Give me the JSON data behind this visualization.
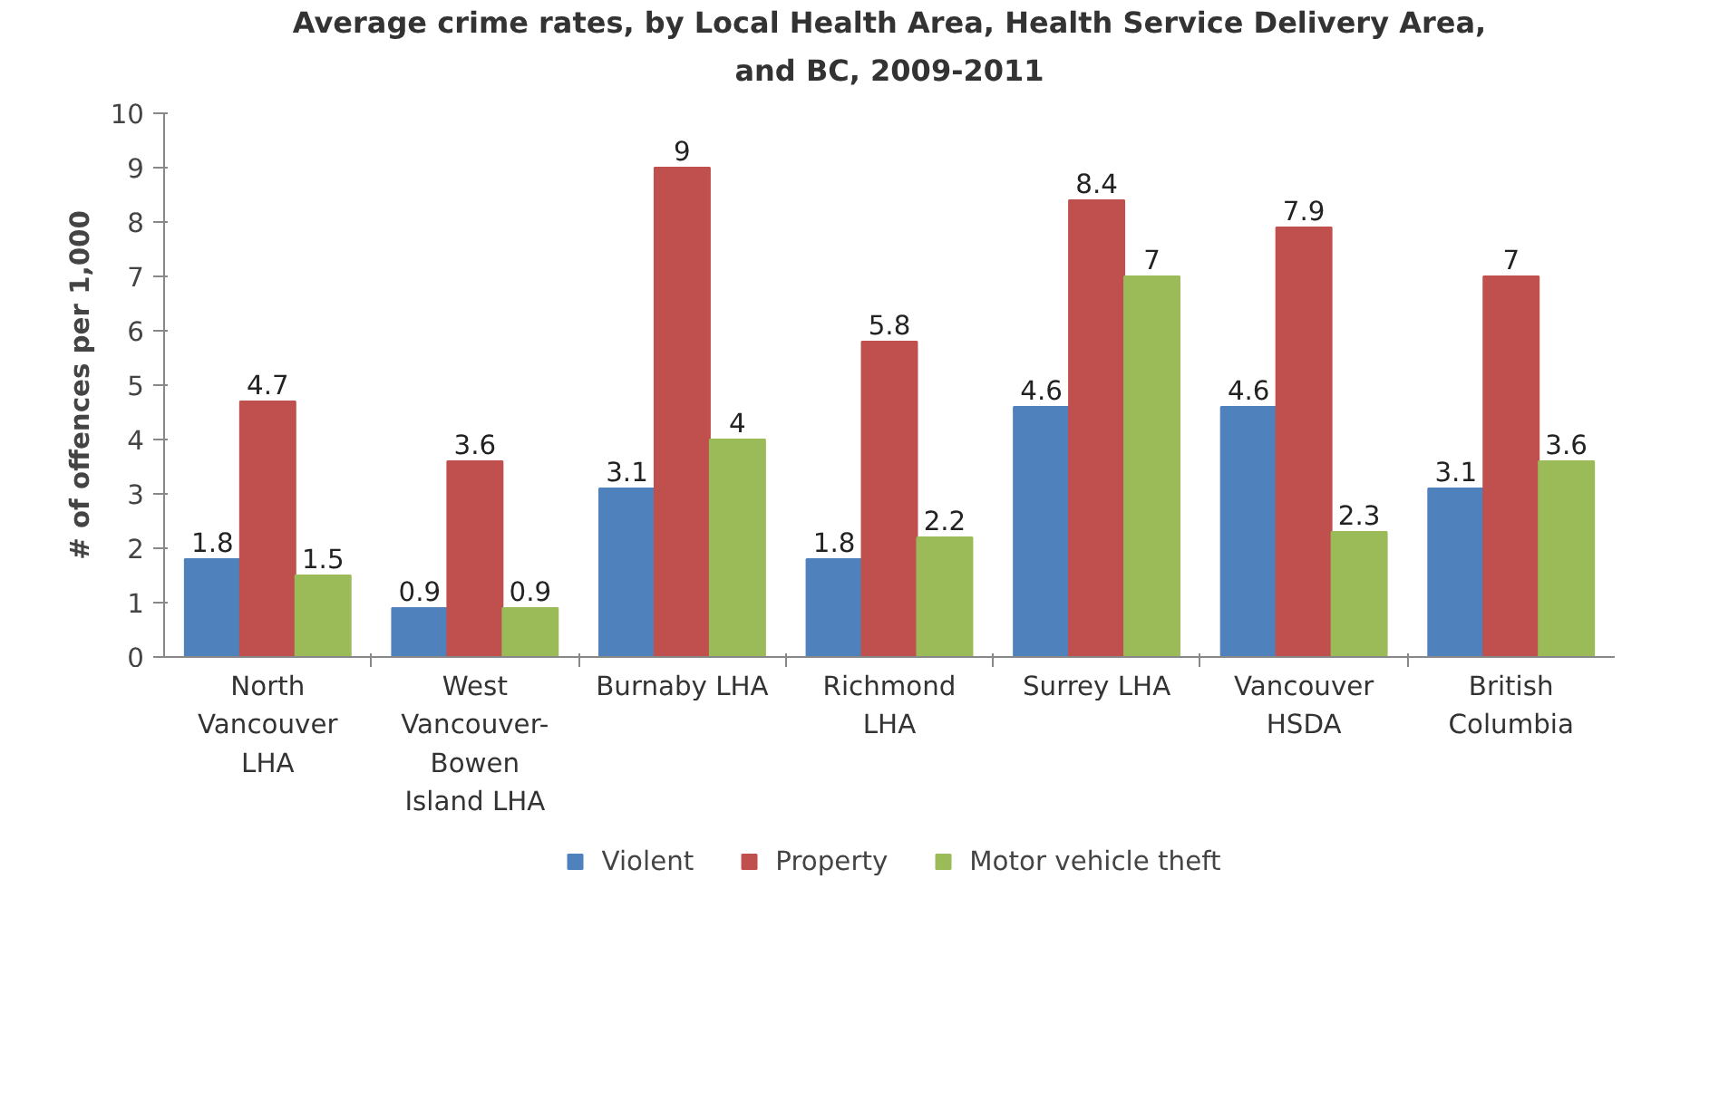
{
  "chart_data": {
    "type": "bar",
    "title": "Average crime rates, by Local Health Area, Health Service Delivery Area,\nand BC, 2009-2011",
    "ylabel": "# of offences per 1,000",
    "categories": [
      "North\nVancouver\nLHA",
      "West\nVancouver-\nBowen\nIsland LHA",
      "Burnaby LHA",
      "Richmond\nLHA",
      "Surrey LHA",
      "Vancouver\nHSDA",
      "British\nColumbia"
    ],
    "series": [
      {
        "name": "Violent",
        "color": "#4f81bd",
        "values": [
          1.8,
          0.9,
          3.1,
          1.8,
          4.6,
          4.6,
          3.1
        ]
      },
      {
        "name": "Property",
        "color": "#c0504d",
        "values": [
          4.7,
          3.6,
          9,
          5.8,
          8.4,
          7.9,
          7
        ]
      },
      {
        "name": "Motor vehicle theft",
        "color": "#9bbb59",
        "values": [
          1.5,
          0.9,
          4,
          2.2,
          7,
          2.3,
          3.6
        ]
      }
    ],
    "ylim": [
      0,
      10
    ],
    "yticks": [
      0,
      1,
      2,
      3,
      4,
      5,
      6,
      7,
      8,
      9,
      10
    ],
    "grid": false,
    "legend": "bottom",
    "data_labels": true
  }
}
